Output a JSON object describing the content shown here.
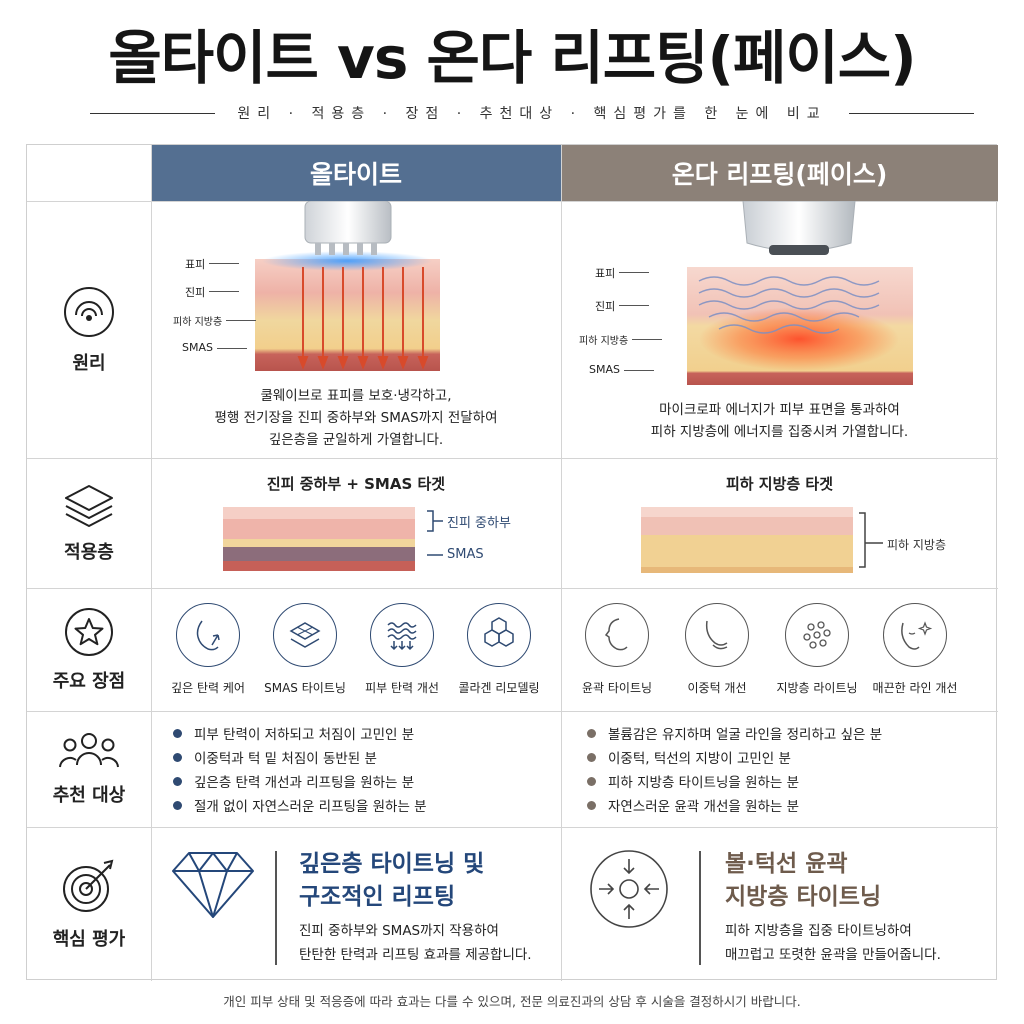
{
  "title": "올타이트 vs 온다 리프팅(페이스)",
  "subtitle": "원리 · 적용층 · 장점 · 추천대상 · 핵심평가를 한 눈에 비교",
  "columns": {
    "a": "올타이트",
    "b": "온다 리프팅(페이스)"
  },
  "rows": {
    "principle": "원리",
    "layer": "적용층",
    "advantages": "주요 장점",
    "target": "추천 대상",
    "evaluation": "핵심 평가"
  },
  "skin_labels": {
    "epidermis": "표피",
    "dermis": "진피",
    "fat": "피하 지방층",
    "smas": "SMAS"
  },
  "principle": {
    "a": [
      "쿨웨이브로 표피를 보호·냉각하고,",
      "평행 전기장을 진피 중하부와 SMAS까지 전달하여",
      "깊은층을 균일하게 가열합니다."
    ],
    "b": [
      "마이크로파 에너지가 피부 표면을 통과하여",
      "피하 지방층에 에너지를 집중시켜 가열합니다."
    ]
  },
  "layer": {
    "a": {
      "heading": "진피 중하부 + SMAS 타겟",
      "label1": "진피 중하부",
      "label2": "SMAS"
    },
    "b": {
      "heading": "피하 지방층 타겟",
      "label1": "피하 지방층"
    }
  },
  "advantages": {
    "a": [
      "깊은 탄력 케어",
      "SMAS 타이트닝",
      "피부 탄력 개선",
      "콜라겐 리모델링"
    ],
    "b": [
      "윤곽 타이트닝",
      "이중턱 개선",
      "지방층 라이트닝",
      "매끈한 라인 개선"
    ]
  },
  "target": {
    "a": [
      "피부 탄력이 저하되고 처짐이 고민인 분",
      "이중턱과 턱 밑 처짐이 동반된 분",
      "깊은층 탄력 개선과 리프팅을 원하는 분",
      "절개 없이 자연스러운 리프팅을 원하는 분"
    ],
    "b": [
      "볼륨감은 유지하며 얼굴 라인을 정리하고 싶은 분",
      "이중턱, 턱선의 지방이 고민인 분",
      "피하 지방층 타이트닝을 원하는 분",
      "자연스러운 윤곽 개선을 원하는 분"
    ]
  },
  "evaluation": {
    "a": {
      "title1": "깊은층 타이트닝 및",
      "title2": "구조적인 리프팅",
      "desc1": "진피 중하부와 SMAS까지 작용하여",
      "desc2": "탄탄한 탄력과 리프팅 효과를 제공합니다."
    },
    "b": {
      "title1": "볼·턱선 윤곽",
      "title2": "지방층 타이트닝",
      "desc1": "피하 지방층을 집중 타이트닝하여",
      "desc2": "매끄럽고 또렷한 윤곽을 만들어줍니다."
    }
  },
  "footer": "개인 피부 상태 및 적응증에 따라 효과는 다를 수 있으며, 전문 의료진과의 상담 후 시술을 결정하시기 바랍니다.",
  "colors": {
    "a": "#546f91",
    "b": "#8c8178",
    "dot_a": "#2f4a72",
    "dot_b": "#7a6f66",
    "eval_a": "#24477a",
    "eval_b": "#6e5b4c"
  },
  "icons": {
    "principle": "radar-icon",
    "layer": "layers-icon",
    "advantages": "star-icon",
    "target": "people-icon",
    "evaluation": "target-icon",
    "eval_a": "diamond-icon",
    "eval_b": "focus-arrows-icon"
  }
}
